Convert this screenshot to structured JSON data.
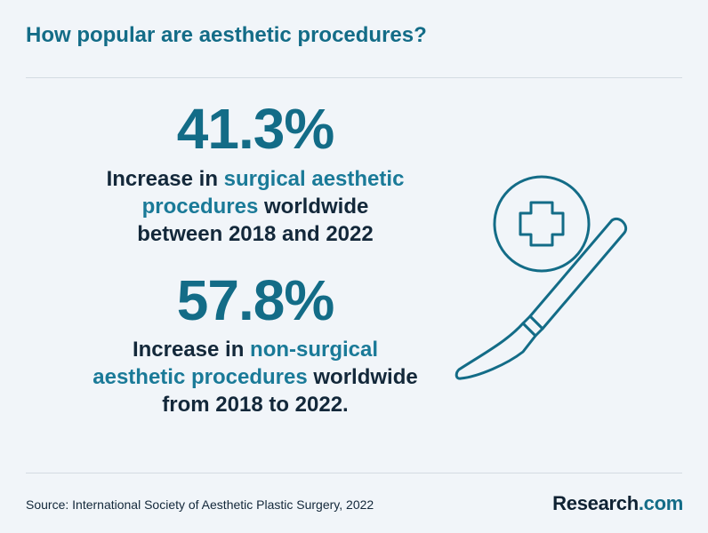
{
  "header": {
    "title": "How popular are aesthetic procedures?"
  },
  "stats": [
    {
      "value": "41.3%",
      "lines": [
        [
          {
            "text": "Increase in ",
            "highlight": false
          },
          {
            "text": "surgical aesthetic",
            "highlight": true
          }
        ],
        [
          {
            "text": "procedures",
            "highlight": true
          },
          {
            "text": " worldwide",
            "highlight": false
          }
        ],
        [
          {
            "text": "between 2018 and 2022",
            "highlight": false
          }
        ]
      ]
    },
    {
      "value": "57.8%",
      "lines": [
        [
          {
            "text": "Increase in ",
            "highlight": false
          },
          {
            "text": "non-surgical",
            "highlight": true
          }
        ],
        [
          {
            "text": "aesthetic procedures",
            "highlight": true
          },
          {
            "text": " worldwide",
            "highlight": false
          }
        ],
        [
          {
            "text": "from 2018 to 2022.",
            "highlight": false
          }
        ]
      ]
    }
  ],
  "illustration": {
    "icons": [
      "medical-cross-icon",
      "scalpel-icon"
    ],
    "stroke_color": "#136c87"
  },
  "footer": {
    "source": "Source: International Society of Aesthetic Plastic Surgery, 2022",
    "logo_main": "Research",
    "logo_suffix": ".com"
  },
  "colors": {
    "background": "#f1f5f9",
    "accent": "#136c87",
    "text": "#13283a",
    "rule": "#d4dbe2"
  }
}
